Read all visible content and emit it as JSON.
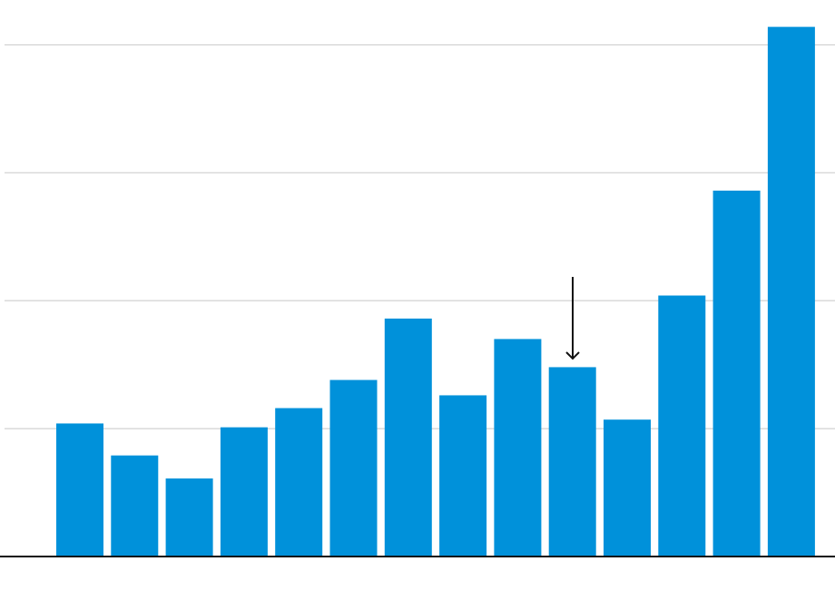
{
  "chart_data": {
    "type": "bar",
    "values": [
      1.04,
      0.79,
      0.61,
      1.01,
      1.16,
      1.38,
      1.86,
      1.26,
      1.7,
      1.48,
      1.07,
      2.04,
      2.86,
      4.14
    ],
    "color": "#0091da",
    "ylim": [
      0,
      4.35
    ],
    "yticks": [
      0,
      1,
      2,
      3,
      4
    ],
    "grid": true
  }
}
